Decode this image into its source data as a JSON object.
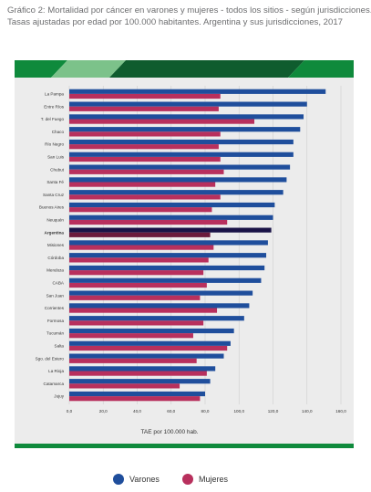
{
  "title_lines": [
    "Gráfico 2: Mortalidad por cáncer en varones y mujeres - todos los sitios - según jurisdicciones.",
    "Tasas ajustadas por edad por 100.000 habitantes. Argentina y sus jurisdicciones, 2017"
  ],
  "colors": {
    "varones": "#1f4e9c",
    "mujeres": "#b8305d",
    "argentina_varones": "#1a1347",
    "argentina_mujeres": "#6b1a3c",
    "band_green": "#0f8a3c",
    "panel": "#ececec",
    "grid": "#cfcfcf"
  },
  "chart_data": {
    "type": "bar",
    "orientation": "horizontal",
    "xlabel": "TAE por 100.000 hab.",
    "xlim": [
      0,
      160
    ],
    "xticks": [
      "0,0",
      "20,0",
      "40,0",
      "60,0",
      "80,0",
      "100,0",
      "120,0",
      "140,0",
      "160,0"
    ],
    "grid": true,
    "legend_position": "bottom",
    "highlight": "Argentina",
    "categories": [
      "La Pampa",
      "Entre Ríos",
      "T. del Fuego",
      "Chaco",
      "Río Negro",
      "San Luis",
      "Chubut",
      "Santa Fé",
      "Santa Cruz",
      "Buenos Aires",
      "Neuquén",
      "Argentina",
      "Misiones",
      "Córdoba",
      "Mendoza",
      "CABA",
      "San Juan",
      "Corrientes",
      "Formosa",
      "Tucumán",
      "Salta",
      "Sgo. del Estero",
      "La Rioja",
      "Catamarca",
      "Jujuy"
    ],
    "series": [
      {
        "name": "Varones",
        "values": [
          151,
          140,
          138,
          136,
          132,
          132,
          130,
          128,
          126,
          121,
          120,
          119,
          117,
          116,
          115,
          113,
          108,
          106,
          103,
          97,
          95,
          91,
          86,
          83,
          80
        ]
      },
      {
        "name": "Mujeres",
        "values": [
          89,
          88,
          109,
          89,
          88,
          89,
          91,
          86,
          89,
          84,
          93,
          83,
          85,
          82,
          79,
          81,
          77,
          87,
          79,
          73,
          93,
          75,
          81,
          65,
          77
        ]
      }
    ]
  }
}
